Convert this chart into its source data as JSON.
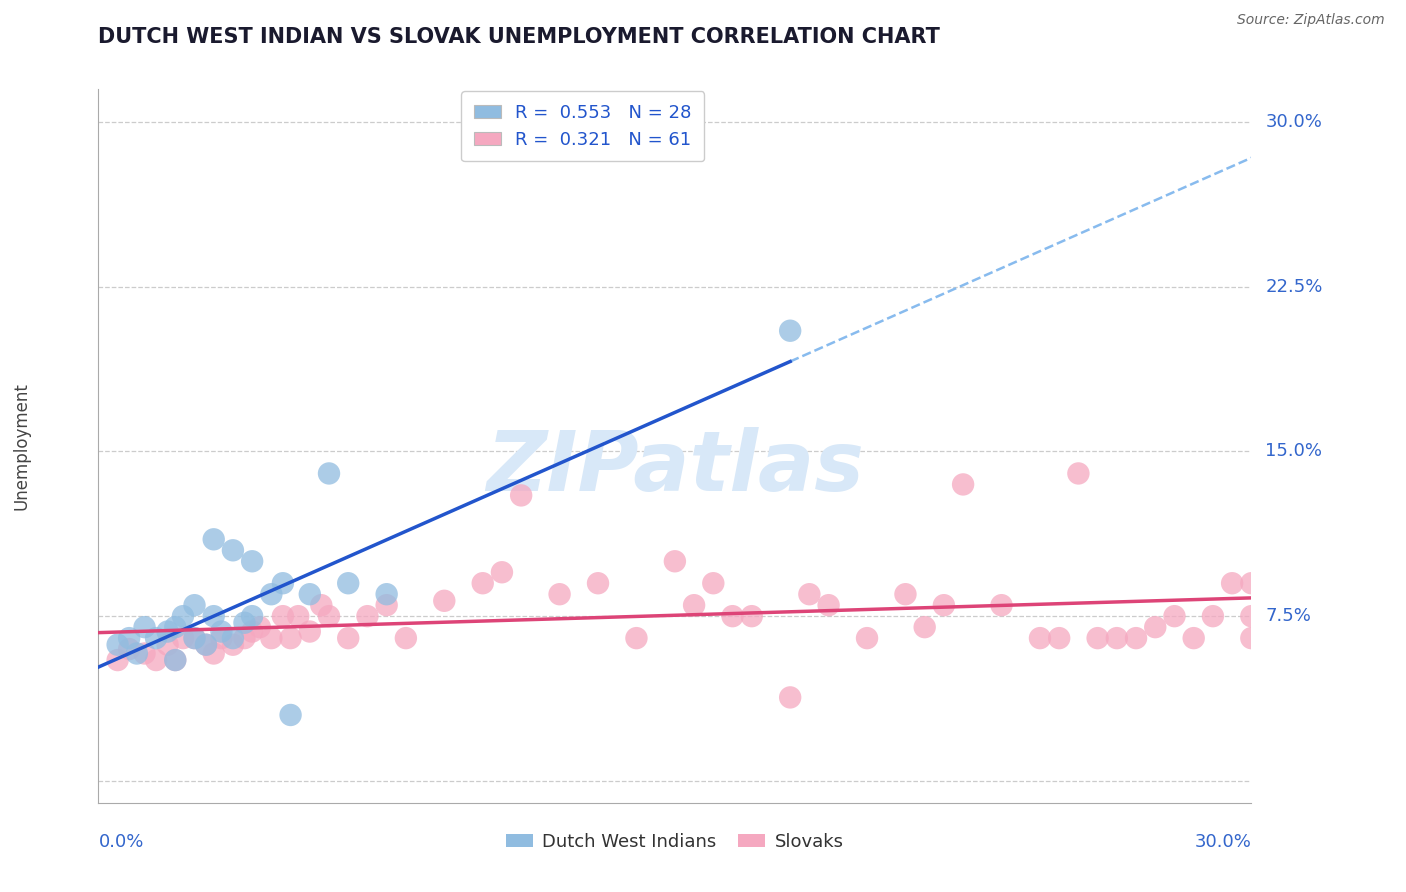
{
  "title": "DUTCH WEST INDIAN VS SLOVAK UNEMPLOYMENT CORRELATION CHART",
  "source_text": "Source: ZipAtlas.com",
  "ylabel": "Unemployment",
  "x_range": [
    0.0,
    0.3
  ],
  "y_range": [
    -0.01,
    0.315
  ],
  "y_ticks": [
    0.0,
    0.075,
    0.15,
    0.225,
    0.3
  ],
  "y_tick_labels": [
    "",
    "7.5%",
    "15.0%",
    "22.5%",
    "30.0%"
  ],
  "x_tick_left": "0.0%",
  "x_tick_right": "30.0%",
  "legend_R_blue": "0.553",
  "legend_N_blue": "28",
  "legend_R_pink": "0.321",
  "legend_N_pink": "61",
  "blue_scatter_color": "#90bce0",
  "pink_scatter_color": "#f5a8c0",
  "blue_line_color": "#2255cc",
  "pink_line_color": "#dd4477",
  "dashed_line_color": "#88bbee",
  "right_label_color": "#3366cc",
  "watermark_color": "#d8e8f8",
  "background_color": "#ffffff",
  "grid_color": "#cccccc",
  "title_color": "#1a1a2e",
  "source_color": "#666666",
  "dutch_x": [
    0.005,
    0.008,
    0.01,
    0.012,
    0.015,
    0.018,
    0.02,
    0.02,
    0.022,
    0.025,
    0.025,
    0.028,
    0.03,
    0.03,
    0.032,
    0.035,
    0.035,
    0.038,
    0.04,
    0.04,
    0.045,
    0.048,
    0.05,
    0.055,
    0.06,
    0.065,
    0.075,
    0.18
  ],
  "dutch_y": [
    0.062,
    0.065,
    0.058,
    0.07,
    0.065,
    0.068,
    0.055,
    0.07,
    0.075,
    0.065,
    0.08,
    0.062,
    0.075,
    0.11,
    0.068,
    0.065,
    0.105,
    0.072,
    0.075,
    0.1,
    0.085,
    0.09,
    0.03,
    0.085,
    0.14,
    0.09,
    0.085,
    0.205
  ],
  "slovak_x": [
    0.005,
    0.008,
    0.012,
    0.015,
    0.018,
    0.02,
    0.022,
    0.025,
    0.028,
    0.03,
    0.032,
    0.035,
    0.038,
    0.04,
    0.042,
    0.045,
    0.048,
    0.05,
    0.052,
    0.055,
    0.058,
    0.06,
    0.065,
    0.07,
    0.075,
    0.08,
    0.09,
    0.1,
    0.105,
    0.11,
    0.12,
    0.13,
    0.14,
    0.15,
    0.155,
    0.16,
    0.165,
    0.17,
    0.18,
    0.185,
    0.19,
    0.2,
    0.21,
    0.215,
    0.22,
    0.225,
    0.235,
    0.245,
    0.25,
    0.255,
    0.26,
    0.265,
    0.27,
    0.275,
    0.28,
    0.285,
    0.29,
    0.295,
    0.3,
    0.3,
    0.3
  ],
  "slovak_y": [
    0.055,
    0.06,
    0.058,
    0.055,
    0.062,
    0.055,
    0.065,
    0.065,
    0.062,
    0.058,
    0.065,
    0.062,
    0.065,
    0.068,
    0.07,
    0.065,
    0.075,
    0.065,
    0.075,
    0.068,
    0.08,
    0.075,
    0.065,
    0.075,
    0.08,
    0.065,
    0.082,
    0.09,
    0.095,
    0.13,
    0.085,
    0.09,
    0.065,
    0.1,
    0.08,
    0.09,
    0.075,
    0.075,
    0.038,
    0.085,
    0.08,
    0.065,
    0.085,
    0.07,
    0.08,
    0.135,
    0.08,
    0.065,
    0.065,
    0.14,
    0.065,
    0.065,
    0.065,
    0.07,
    0.075,
    0.065,
    0.075,
    0.09,
    0.065,
    0.075,
    0.09
  ]
}
